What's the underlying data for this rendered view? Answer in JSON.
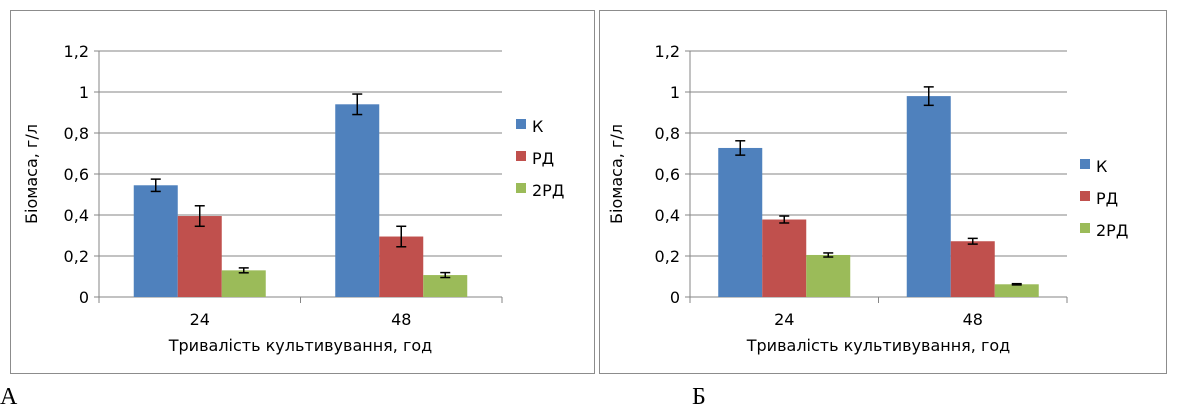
{
  "panels": [
    {
      "letter": "А"
    },
    {
      "letter": "Б"
    }
  ],
  "chart_data": [
    {
      "type": "bar",
      "categories": [
        "24",
        "48"
      ],
      "series": [
        {
          "name": "К",
          "color": "#4f81bd",
          "values": [
            0.545,
            0.94
          ],
          "errors": [
            0.03,
            0.05
          ]
        },
        {
          "name": "РД",
          "color": "#c0504d",
          "values": [
            0.395,
            0.295
          ],
          "errors": [
            0.05,
            0.05
          ]
        },
        {
          "name": "2РД",
          "color": "#9bbb59",
          "values": [
            0.13,
            0.107
          ],
          "errors": [
            0.012,
            0.012
          ]
        }
      ],
      "ylim": [
        0,
        1.2
      ],
      "yticks": [
        "0",
        "0,2",
        "0,4",
        "0,6",
        "0,8",
        "1",
        "1,2"
      ],
      "xlabel": "Тривалість культивування, год",
      "ylabel": "Біомаса, г/л",
      "grid": true,
      "legend": "right"
    },
    {
      "type": "bar",
      "categories": [
        "24",
        "48"
      ],
      "series": [
        {
          "name": "К",
          "color": "#4f81bd",
          "values": [
            0.727,
            0.98
          ],
          "errors": [
            0.035,
            0.045
          ]
        },
        {
          "name": "РД",
          "color": "#c0504d",
          "values": [
            0.378,
            0.272
          ],
          "errors": [
            0.017,
            0.014
          ]
        },
        {
          "name": "2РД",
          "color": "#9bbb59",
          "values": [
            0.205,
            0.062
          ],
          "errors": [
            0.01,
            0.003
          ]
        }
      ],
      "ylim": [
        0,
        1.2
      ],
      "yticks": [
        "0",
        "0,2",
        "0,4",
        "0,6",
        "0,8",
        "1",
        "1,2"
      ],
      "xlabel": "Тривалість культивування, год",
      "ylabel": "Біомаса, г/л",
      "grid": true,
      "legend": "right"
    }
  ]
}
